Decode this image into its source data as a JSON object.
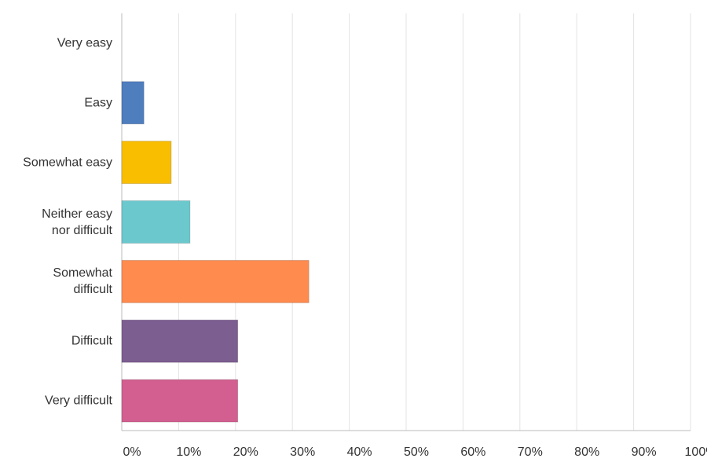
{
  "chart_data": {
    "type": "bar",
    "orientation": "horizontal",
    "categories": [
      "Very easy",
      "Easy",
      "Somewhat easy",
      "Neither easy\nnor difficult",
      "Somewhat\ndifficult",
      "Difficult",
      "Very difficult"
    ],
    "values": [
      0,
      3.9,
      8.7,
      12.0,
      32.9,
      20.4,
      20.4
    ],
    "colors": [
      "#4f7ebf",
      "#4f7ebf",
      "#f9be00",
      "#6bc8cd",
      "#ff8b4f",
      "#7d5e91",
      "#d25f90"
    ],
    "xlim": [
      0,
      100
    ],
    "xticks": [
      {
        "value": 0,
        "label": "0%"
      },
      {
        "value": 10,
        "label": "10%"
      },
      {
        "value": 20,
        "label": "20%"
      },
      {
        "value": 30,
        "label": "30%"
      },
      {
        "value": 40,
        "label": "40%"
      },
      {
        "value": 50,
        "label": "50%"
      },
      {
        "value": 60,
        "label": "60%"
      },
      {
        "value": 70,
        "label": "70%"
      },
      {
        "value": 80,
        "label": "80%"
      },
      {
        "value": 90,
        "label": "90%"
      },
      {
        "value": 100,
        "label": "100%"
      }
    ],
    "grid": true
  }
}
